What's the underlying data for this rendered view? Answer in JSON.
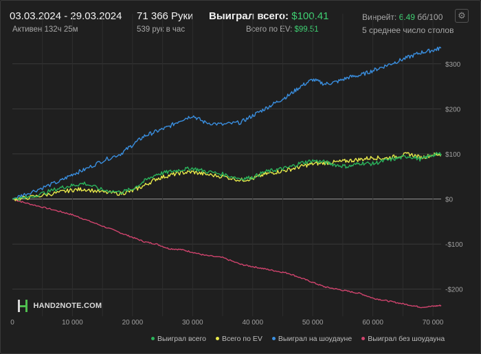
{
  "header": {
    "date_range": "03.03.2024 - 29.03.2024",
    "active_time": "Активен 132ч 25м",
    "hands": "71 366 Руки",
    "hands_per_hour": "539 рук в час",
    "won_total_label": "Выиграл всего:",
    "won_total_value": "$100.41",
    "ev_total_label": "Всего по EV:",
    "ev_total_value": "$99.51",
    "winrate_label": "Винрейт:",
    "winrate_value": "6.49",
    "winrate_unit": "бб/100",
    "tables": "5 среднее число столов",
    "settings_icon": "gear-icon"
  },
  "logo": {
    "text": "HAND2NOTE.COM"
  },
  "colors": {
    "won_total": "#2bb35b",
    "ev_total": "#e9ea4a",
    "showdown": "#3a8fe0",
    "non_showdown": "#d1446e",
    "grid": "#3a3a3a",
    "zero_line": "#bdbdbd"
  },
  "chart_data": {
    "type": "line",
    "xlabel": "",
    "ylabel": "",
    "xlim": [
      0,
      71366
    ],
    "ylim": [
      -260,
      350
    ],
    "x_ticks": [
      0,
      10000,
      20000,
      30000,
      40000,
      50000,
      60000,
      70000
    ],
    "x_tick_labels": [
      "0",
      "10 000",
      "20 000",
      "30 000",
      "40 000",
      "50 000",
      "60 000",
      "70 000"
    ],
    "y_ticks": [
      300,
      200,
      100,
      0,
      -100,
      -200
    ],
    "y_tick_labels": [
      "$300",
      "$200",
      "$100",
      "$0",
      "-$100",
      "-$200"
    ],
    "legend_position": "bottom-right",
    "series": [
      {
        "name": "Выиграл всего",
        "x": [
          0,
          2000,
          5000,
          8000,
          10000,
          12000,
          15000,
          18000,
          20000,
          22000,
          24000,
          26000,
          28000,
          30000,
          32000,
          35000,
          38000,
          40000,
          42000,
          44000,
          46000,
          48000,
          50000,
          52000,
          54000,
          56000,
          58000,
          60000,
          62000,
          64000,
          66000,
          68000,
          70000,
          71366
        ],
        "y": [
          0,
          2,
          12,
          25,
          30,
          35,
          20,
          15,
          22,
          40,
          55,
          60,
          65,
          68,
          62,
          55,
          45,
          48,
          60,
          65,
          70,
          80,
          85,
          82,
          75,
          72,
          80,
          78,
          85,
          90,
          95,
          88,
          98,
          100.41
        ]
      },
      {
        "name": "Всего по EV",
        "x": [
          0,
          2000,
          5000,
          8000,
          10000,
          12000,
          15000,
          18000,
          20000,
          22000,
          24000,
          26000,
          28000,
          30000,
          32000,
          35000,
          38000,
          40000,
          42000,
          44000,
          46000,
          48000,
          50000,
          52000,
          54000,
          56000,
          58000,
          60000,
          62000,
          64000,
          66000,
          68000,
          70000,
          71366
        ],
        "y": [
          0,
          2,
          8,
          15,
          20,
          22,
          15,
          12,
          18,
          30,
          45,
          52,
          58,
          60,
          55,
          50,
          42,
          45,
          55,
          60,
          65,
          72,
          78,
          80,
          82,
          85,
          88,
          92,
          90,
          95,
          100,
          92,
          98,
          99.51
        ]
      },
      {
        "name": "Выиграл на шоудауне",
        "x": [
          0,
          2000,
          5000,
          8000,
          10000,
          12000,
          15000,
          18000,
          20000,
          22000,
          24000,
          26000,
          28000,
          30000,
          32000,
          35000,
          38000,
          40000,
          42000,
          44000,
          46000,
          48000,
          50000,
          52000,
          54000,
          56000,
          58000,
          60000,
          62000,
          64000,
          66000,
          68000,
          70000,
          71366
        ],
        "y": [
          0,
          10,
          25,
          40,
          55,
          65,
          85,
          100,
          120,
          140,
          150,
          160,
          175,
          185,
          170,
          165,
          170,
          185,
          200,
          215,
          230,
          250,
          265,
          255,
          260,
          270,
          275,
          285,
          295,
          305,
          315,
          325,
          330,
          335
        ]
      },
      {
        "name": "Выиграл без шоудауна",
        "x": [
          0,
          2000,
          5000,
          8000,
          10000,
          12000,
          15000,
          18000,
          20000,
          22000,
          24000,
          26000,
          28000,
          30000,
          32000,
          35000,
          38000,
          40000,
          42000,
          44000,
          46000,
          48000,
          50000,
          52000,
          54000,
          56000,
          58000,
          60000,
          62000,
          64000,
          66000,
          68000,
          70000,
          71366
        ],
        "y": [
          0,
          -8,
          -18,
          -28,
          -35,
          -45,
          -60,
          -75,
          -85,
          -95,
          -100,
          -110,
          -112,
          -118,
          -125,
          -130,
          -145,
          -150,
          -155,
          -160,
          -165,
          -175,
          -185,
          -195,
          -200,
          -205,
          -210,
          -220,
          -225,
          -230,
          -235,
          -240,
          -238,
          -236
        ]
      }
    ]
  }
}
